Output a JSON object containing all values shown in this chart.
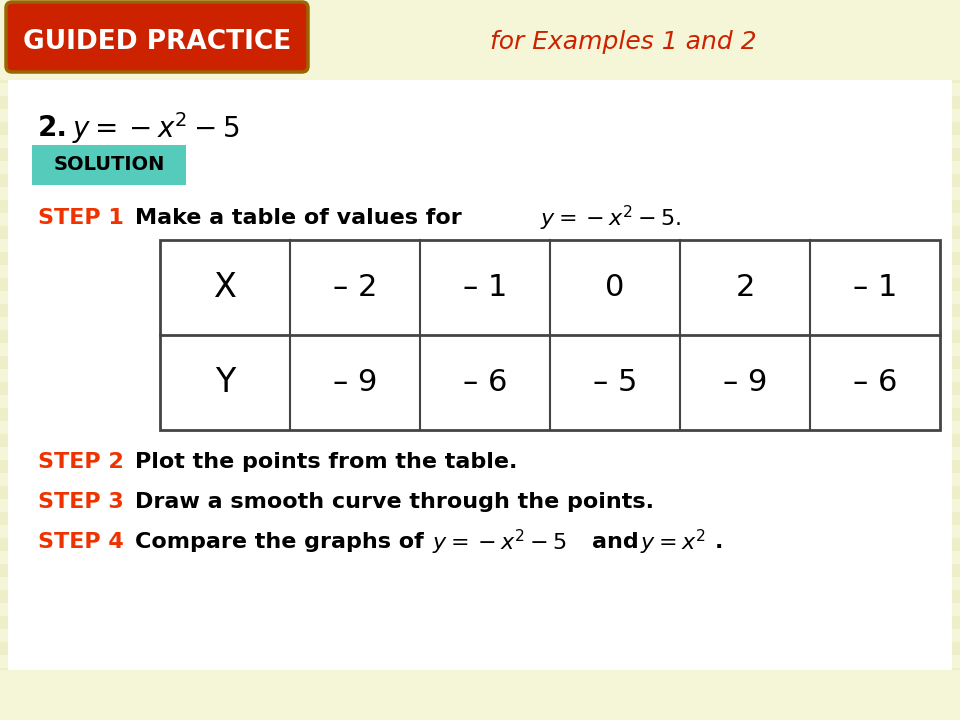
{
  "bg_stripe_light": "#f5f5d8",
  "bg_stripe_dark": "#eeeec8",
  "white_bg": "#ffffff",
  "header_bg_color": "#cc2200",
  "header_border_color": "#996600",
  "header_text": "GUIDED PRACTICE",
  "header_subtext": "for Examples 1 and 2",
  "header_text_color": "#ffffff",
  "header_subtext_color": "#cc2200",
  "problem_number": "2.",
  "solution_bg": "#55ccbb",
  "solution_text": "SOLUTION",
  "table_x_header": "X",
  "table_y_header": "Y",
  "table_x_values": [
    "– 2",
    "– 1",
    "0",
    "2",
    "– 1"
  ],
  "table_y_values": [
    "– 9",
    "– 6",
    "– 5",
    "– 9",
    "– 6"
  ],
  "step_label_color": "#ee3300",
  "table_border_color": "#444444",
  "step1_label": "STEP 1",
  "step2_label": "STEP 2",
  "step3_label": "STEP 3",
  "step4_label": "STEP 4"
}
